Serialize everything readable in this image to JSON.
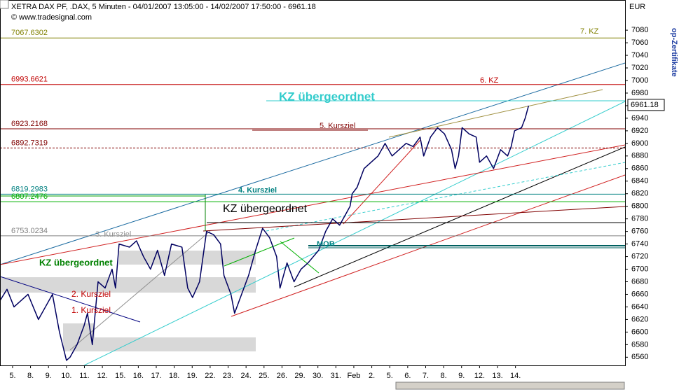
{
  "chart_data": {
    "type": "line",
    "title": "XETRA DAX PF, .DAX, 5 Minuten - 04/01/2007 13:05:00 - 14/02/2007 17:50:00 - 6961.18",
    "subtitle": "© www.tradesignal.com",
    "y_label": "EUR",
    "side_label": "op-Zertifikate",
    "ylim": [
      6547,
      7128
    ],
    "yticks": [
      6560,
      6580,
      6600,
      6620,
      6640,
      6660,
      6680,
      6700,
      6720,
      6740,
      6760,
      6780,
      6800,
      6820,
      6840,
      6860,
      6880,
      6900,
      6920,
      6940,
      6960,
      6980,
      7000,
      7020,
      7040,
      7060,
      7080
    ],
    "xlim": [
      -0.7,
      34.1
    ],
    "xticks": [
      {
        "value": 0,
        "label": "5."
      },
      {
        "value": 1,
        "label": "8."
      },
      {
        "value": 2,
        "label": "9."
      },
      {
        "value": 3,
        "label": "10."
      },
      {
        "value": 4,
        "label": "11."
      },
      {
        "value": 5,
        "label": "12."
      },
      {
        "value": 6,
        "label": "15."
      },
      {
        "value": 7,
        "label": "16."
      },
      {
        "value": 8,
        "label": "17."
      },
      {
        "value": 9,
        "label": "18."
      },
      {
        "value": 10,
        "label": "19."
      },
      {
        "value": 11,
        "label": "22."
      },
      {
        "value": 12,
        "label": "23."
      },
      {
        "value": 13,
        "label": "24."
      },
      {
        "value": 14,
        "label": "25."
      },
      {
        "value": 15,
        "label": "26."
      },
      {
        "value": 16,
        "label": "29."
      },
      {
        "value": 17,
        "label": "30."
      },
      {
        "value": 18,
        "label": "31."
      },
      {
        "value": 19,
        "label": "Feb"
      },
      {
        "value": 20,
        "label": "2."
      },
      {
        "value": 21,
        "label": "5."
      },
      {
        "value": 22,
        "label": "6."
      },
      {
        "value": 23,
        "label": "7."
      },
      {
        "value": 24,
        "label": "8."
      },
      {
        "value": 25,
        "label": "9."
      },
      {
        "value": 26,
        "label": "12."
      },
      {
        "value": 27,
        "label": "13."
      },
      {
        "value": 28,
        "label": "14."
      }
    ],
    "series": [
      {
        "name": "DAX",
        "color": "#000060",
        "x": [
          -0.7,
          -0.31,
          0.08,
          0.86,
          1.44,
          1.83,
          2.22,
          2.61,
          3.0,
          3.2,
          3.59,
          3.98,
          4.17,
          4.44,
          4.76,
          5.15,
          5.54,
          5.73,
          5.93,
          6.51,
          6.9,
          7.29,
          7.68,
          8.07,
          8.46,
          8.85,
          9.43,
          9.75,
          10.02,
          10.41,
          10.8,
          11.19,
          11.58,
          11.77,
          12.16,
          12.36,
          12.75,
          13.14,
          13.53,
          13.92,
          14.31,
          14.7,
          14.89,
          15.28,
          15.67,
          16.06,
          16.45,
          17.04,
          17.43,
          17.82,
          18.21,
          18.6,
          18.79,
          18.91,
          19.18,
          19.57,
          19.96,
          20.35,
          20.74,
          21.13,
          21.52,
          21.91,
          22.3,
          22.69,
          22.89,
          23.27,
          23.66,
          24.05,
          24.44,
          24.64,
          24.83,
          25.03,
          25.42,
          25.81,
          26.0,
          26.39,
          26.78,
          27.17,
          27.56,
          27.76,
          27.95,
          28.34,
          28.54,
          28.73
        ],
        "values": [
          6650,
          6668,
          6640,
          6660,
          6620,
          6640,
          6660,
          6600,
          6555,
          6560,
          6580,
          6610,
          6630,
          6580,
          6680,
          6670,
          6700,
          6670,
          6740,
          6735,
          6745,
          6720,
          6700,
          6730,
          6690,
          6740,
          6735,
          6670,
          6655,
          6680,
          6760,
          6755,
          6740,
          6690,
          6660,
          6630,
          6660,
          6690,
          6730,
          6765,
          6750,
          6720,
          6670,
          6710,
          6680,
          6700,
          6710,
          6730,
          6760,
          6780,
          6770,
          6790,
          6800,
          6820,
          6830,
          6860,
          6870,
          6880,
          6900,
          6880,
          6890,
          6900,
          6895,
          6910,
          6880,
          6910,
          6925,
          6915,
          6890,
          6860,
          6880,
          6925,
          6915,
          6910,
          6870,
          6880,
          6860,
          6890,
          6880,
          6895,
          6920,
          6925,
          6940,
          6960
        ]
      }
    ],
    "last_value": 6961.18,
    "levels": [
      {
        "value": 7067.6302,
        "color": "#808000"
      },
      {
        "value": 6993.6621,
        "color": "#c00000"
      },
      {
        "value": 6923.2168,
        "color": "#800000"
      },
      {
        "value": 6892.7319,
        "color": "#800000"
      },
      {
        "value": 6819.2983,
        "color": "#008080"
      },
      {
        "value": 6807.2476,
        "color": "#00b000"
      },
      {
        "value": 6753.0234,
        "color": "#808080"
      }
    ],
    "annotations": [
      {
        "text": "7. KZ",
        "color": "#808000"
      },
      {
        "text": "6. KZ",
        "color": "#c00000"
      },
      {
        "text": "KZ übergeordnet",
        "color": "#33cccc"
      },
      {
        "text": "5. Kursziel",
        "color": "#800000"
      },
      {
        "text": "4. Kursziel",
        "color": "#008080"
      },
      {
        "text": "KZ übergeordnet",
        "color": "#000000"
      },
      {
        "text": "3. Kursziel",
        "color": "#909090"
      },
      {
        "text": "KZ übergeordnet",
        "color": "#008000"
      },
      {
        "text": "MOB",
        "color": "#008080"
      },
      {
        "text": "2. Kursziel",
        "color": "#c00000"
      },
      {
        "text": "1. Kursziel",
        "color": "#c00000"
      }
    ]
  }
}
